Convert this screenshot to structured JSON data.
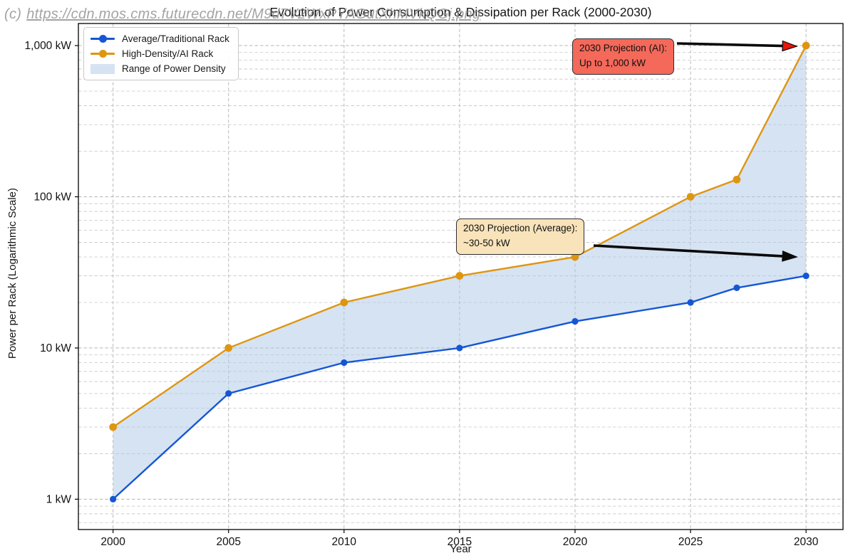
{
  "watermark": {
    "prefix": "(c)",
    "url": "https://cdn.mos.cms.futurecdn.net/M9d7V2WxPYAGutXhMVkQGj.png"
  },
  "chart_data": {
    "type": "line",
    "title": "Evolution of Power Consumption & Dissipation per Rack (2000-2030)",
    "xlabel": "Year",
    "ylabel": "Power per Rack (Logarithmic Scale)",
    "y_scale": "log",
    "grid": "dashed",
    "legend_position": "upper-left",
    "x": [
      2000,
      2005,
      2010,
      2015,
      2020,
      2025,
      2027,
      2030
    ],
    "series": [
      {
        "name": "Average/Traditional Rack",
        "color": "#1556d4",
        "marker": "circle",
        "values": [
          1,
          5,
          8,
          10,
          15,
          20,
          25,
          30
        ]
      },
      {
        "name": "High-Density/AI Rack",
        "color": "#de9610",
        "marker": "circle",
        "values": [
          3,
          10,
          20,
          30,
          40,
          100,
          130,
          1000
        ]
      }
    ],
    "fill_between": {
      "label": "Range of Power Density",
      "color": "#aec7e8",
      "opacity": 0.5
    },
    "x_ticks": [
      "2000",
      "2005",
      "2010",
      "2015",
      "2020",
      "2025",
      "2030"
    ],
    "x_tick_values": [
      2000,
      2005,
      2010,
      2015,
      2020,
      2025,
      2030
    ],
    "y_ticks": [
      "1 kW",
      "10 kW",
      "100 kW",
      "1,000 kW"
    ],
    "y_tick_values": [
      1,
      10,
      100,
      1000
    ],
    "xlim": [
      1998.5,
      2031.6
    ],
    "ylim": [
      0.63,
      1400
    ],
    "annotations": [
      {
        "text1": "2030 Projection (AI):",
        "text2": "Up to 1,000 kW",
        "box_fill": "#f4695a",
        "arrow_head": "#e8150a",
        "target_x": 2030,
        "target_y": 1000
      },
      {
        "text1": "2030 Projection (Average):",
        "text2": "~30-50 kW",
        "box_fill": "#f8e3ba",
        "arrow_head": "#0a0a0a",
        "target_x": 2030,
        "target_y": 40
      }
    ]
  }
}
